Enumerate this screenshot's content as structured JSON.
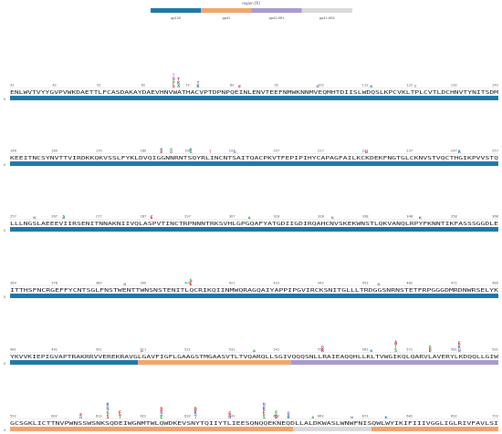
{
  "legend": {
    "title": "region [R]",
    "items": [
      {
        "label": "gp120",
        "color": "#1f78a8"
      },
      {
        "label": "gp41",
        "color": "#f2a56b"
      },
      {
        "label": "gp41-HR1",
        "color": "#a89ad0"
      },
      {
        "label": "gp41-HR2",
        "color": "#d9d9d9"
      }
    ]
  },
  "chart_data": {
    "type": "sequence-logo",
    "zero_label": "0",
    "rows": [
      {
        "start": 32,
        "ticks": [
          "32",
          "42",
          "52",
          "62",
          "72",
          "82",
          "92",
          "102",
          "112",
          "122",
          "132",
          "142"
        ],
        "sequence": "ENLWVTVYYGVPVWKDAETTLFCASDAKAYDAEVHNVWATHACVPTDPNPQEINLENVTEEFNMWKNNMVEQMHTDIISLWDQSLKPCVKLTPLCVTLDCHNVTYNITSDM",
        "segments": [
          {
            "region": "gp120",
            "from": 0,
            "to": 1
          }
        ],
        "logos": [
          {
            "pos": 0.335,
            "letters": [
              {
                "c": "S",
                "color": "#d62728"
              },
              {
                "c": "P",
                "color": "#2ca02c"
              },
              {
                "c": "N",
                "color": "#9467bd"
              },
              {
                "c": "T",
                "color": "#e377c2"
              }
            ],
            "h": 16
          },
          {
            "pos": 0.345,
            "letters": [
              {
                "c": "A",
                "color": "#2ca02c"
              },
              {
                "c": "K",
                "color": "#1f77b4"
              },
              {
                "c": "T",
                "color": "#d62728"
              }
            ],
            "h": 11
          },
          {
            "pos": 0.385,
            "letters": [
              {
                "c": "K",
                "color": "#1f77b4"
              },
              {
                "c": "T",
                "color": "#9467bd"
              }
            ],
            "h": 7
          },
          {
            "pos": 0.47,
            "letters": [
              {
                "c": "E",
                "color": "#d62728"
              }
            ],
            "h": 3
          },
          {
            "pos": 0.63,
            "letters": [
              {
                "c": "N",
                "color": "#9467bd"
              }
            ],
            "h": 3
          },
          {
            "pos": 0.74,
            "letters": [
              {
                "c": "K",
                "color": "#1f77b4"
              }
            ],
            "h": 3
          },
          {
            "pos": 0.83,
            "letters": [
              {
                "c": "T",
                "color": "#9467bd"
              }
            ],
            "h": 3
          }
        ]
      },
      {
        "start": 146,
        "ticks": [
          "146",
          "160",
          "170",
          "180",
          "190",
          "197",
          "207",
          "217",
          "227",
          "237",
          "247",
          "257"
        ],
        "sequence": "KEEITNCSYNVTTVIRDKKQKVSSLFYKLDVQIGGNNRNTSQYRLINCNTSAITQACPKVTFEPIPIHYCAPAGFAILKCKDEKFNGTGLCKNVSTVQCTHGIKPVVSTQ",
        "segments": [
          {
            "region": "gp120",
            "from": 0,
            "to": 1
          }
        ],
        "logos": [
          {
            "pos": 0.31,
            "letters": [
              {
                "c": "E",
                "color": "#d62728"
              },
              {
                "c": "K",
                "color": "#1f77b4"
              }
            ],
            "h": 6
          },
          {
            "pos": 0.33,
            "letters": [
              {
                "c": "N",
                "color": "#9467bd"
              },
              {
                "c": "S",
                "color": "#2ca02c"
              }
            ],
            "h": 6
          },
          {
            "pos": 0.37,
            "letters": [
              {
                "c": "G",
                "color": "#2ca02c"
              },
              {
                "c": "K",
                "color": "#1f77b4"
              }
            ],
            "h": 6
          },
          {
            "pos": 0.41,
            "letters": [
              {
                "c": "T",
                "color": "#e377c2"
              }
            ],
            "h": 4
          },
          {
            "pos": 0.46,
            "letters": [
              {
                "c": "N",
                "color": "#9467bd"
              }
            ],
            "h": 3
          },
          {
            "pos": 0.73,
            "letters": [
              {
                "c": "D",
                "color": "#d62728"
              }
            ],
            "h": 3
          },
          {
            "pos": 0.92,
            "letters": [
              {
                "c": "R",
                "color": "#1f77b4"
              }
            ],
            "h": 4
          }
        ]
      },
      {
        "start": 257,
        "ticks": [
          "257",
          "267",
          "277",
          "287",
          "297",
          "307",
          "318",
          "328",
          "338",
          "348",
          "358",
          "368"
        ],
        "sequence": "LLLNGSLAEEEVIIRSENITNNAKNIIVQLASPVTINCTRPNNNTRKSVHLGPGQAFYATGDIIGDIRQAHCNVSKEKWNSTLQKVANQLRPYFKNNTIKFASSSGGDLE",
        "segments": [
          {
            "region": "gp120",
            "from": 0,
            "to": 1
          }
        ],
        "logos": [
          {
            "pos": 0.05,
            "letters": [
              {
                "c": "N",
                "color": "#9467bd"
              }
            ],
            "h": 3
          },
          {
            "pos": 0.11,
            "letters": [
              {
                "c": "K",
                "color": "#1f77b4"
              },
              {
                "c": "S",
                "color": "#2ca02c"
              }
            ],
            "h": 4
          },
          {
            "pos": 0.29,
            "letters": [
              {
                "c": "E",
                "color": "#d62728"
              }
            ],
            "h": 4
          },
          {
            "pos": 0.49,
            "letters": [
              {
                "c": "A",
                "color": "#2ca02c"
              }
            ],
            "h": 3
          },
          {
            "pos": 0.66,
            "letters": [
              {
                "c": "N",
                "color": "#9467bd"
              }
            ],
            "h": 3
          },
          {
            "pos": 0.84,
            "letters": [
              {
                "c": "K",
                "color": "#1f77b4"
              }
            ],
            "h": 3
          }
        ]
      },
      {
        "start": 369,
        "ticks": [
          "369",
          "378",
          "389",
          "399",
          "409",
          "421",
          "431",
          "442",
          "453",
          "462",
          "472",
          "480"
        ],
        "sequence": "ITTHSFNCRGEFFYCNTSGLFNSTWENTTWNSNSTENITLQCRIKQIINMWQRAGQAIYAPPIPGVIRCKSNITGLLLTRDGGSNRNSTETFRPGGGDMRDNWRSELYK",
        "segments": [
          {
            "region": "gp120",
            "from": 0,
            "to": 1
          }
        ],
        "logos": [
          {
            "pos": 0.235,
            "letters": [
              {
                "c": "N",
                "color": "#9467bd"
              }
            ],
            "h": 3
          },
          {
            "pos": 0.37,
            "letters": [
              {
                "c": "E",
                "color": "#d62728"
              },
              {
                "c": "G",
                "color": "#2ca02c"
              }
            ],
            "h": 8
          },
          {
            "pos": 0.755,
            "letters": [
              {
                "c": "N",
                "color": "#9467bd"
              }
            ],
            "h": 3
          }
        ]
      },
      {
        "start": 481,
        "ticks": [
          "481",
          "491",
          "501",
          "511",
          "521",
          "531",
          "541",
          "551",
          "561",
          "571",
          "581",
          "591"
        ],
        "sequence": "YKVVKIEPIGVAPTRAKRRVVEREKRAVGLGAVFIGFLGAAGSTMGAASVTLTVQARQLLSGIVQQQSNLLRAIEAQQHLLKLTVWGIKQLQARVLAVERYLKDQQLLGIW",
        "segments": [
          {
            "region": "gp120",
            "from": 0,
            "to": 0.262
          },
          {
            "region": "gp41",
            "from": 0.262,
            "to": 0.575
          },
          {
            "region": "gp41-HR1",
            "from": 0.575,
            "to": 1
          }
        ],
        "logos": [
          {
            "pos": 0.27,
            "letters": [
              {
                "c": "L",
                "color": "#d62728"
              }
            ],
            "h": 3
          },
          {
            "pos": 0.5,
            "letters": [
              {
                "c": "A",
                "color": "#2ca02c"
              }
            ],
            "h": 3
          },
          {
            "pos": 0.64,
            "letters": [
              {
                "c": "R",
                "color": "#d62728"
              },
              {
                "c": "Q",
                "color": "#9467bd"
              }
            ],
            "h": 7
          },
          {
            "pos": 0.74,
            "letters": [
              {
                "c": "K",
                "color": "#1f77b4"
              }
            ],
            "h": 3
          },
          {
            "pos": 0.79,
            "letters": [
              {
                "c": "S",
                "color": "#2ca02c"
              },
              {
                "c": "T",
                "color": "#9467bd"
              },
              {
                "c": "A",
                "color": "#d62728"
              }
            ],
            "h": 13
          },
          {
            "pos": 0.86,
            "letters": [
              {
                "c": "D",
                "color": "#d62728"
              },
              {
                "c": "G",
                "color": "#2ca02c"
              }
            ],
            "h": 7
          },
          {
            "pos": 0.92,
            "letters": [
              {
                "c": "N",
                "color": "#9467bd"
              },
              {
                "c": "K",
                "color": "#1f77b4"
              },
              {
                "c": "E",
                "color": "#d62728"
              }
            ],
            "h": 12
          }
        ]
      },
      {
        "start": 592,
        "ticks": [
          "592",
          "602",
          "612",
          "622",
          "632",
          "642",
          "652",
          "662",
          "672",
          "682",
          "692",
          "702"
        ],
        "sequence": "GCSGKLICTTNVPWNSSWSNKSQDEIWGNMTWLQWDKEVSNYTQIIYTLIEESQNQQEKNEQDLLALDKWASLWNWFNISQWLWYIKIFIIIVGGLIGLRIVFAVLSI",
        "segments": [
          {
            "region": "gp41",
            "from": 0,
            "to": 0.58
          },
          {
            "region": "gp41-HR2",
            "from": 0.58,
            "to": 0.74
          },
          {
            "region": "gp41",
            "from": 0.74,
            "to": 1
          }
        ],
        "logos": [
          {
            "pos": 0.145,
            "letters": [
              {
                "c": "N",
                "color": "#9467bd"
              },
              {
                "c": "E",
                "color": "#d62728"
              }
            ],
            "h": 6
          },
          {
            "pos": 0.2,
            "letters": [
              {
                "c": "S",
                "color": "#d62728"
              },
              {
                "c": "G",
                "color": "#2ca02c"
              },
              {
                "c": "N",
                "color": "#9467bd"
              },
              {
                "c": "K",
                "color": "#1f77b4"
              }
            ],
            "h": 18
          },
          {
            "pos": 0.225,
            "letters": [
              {
                "c": "T",
                "color": "#2ca02c"
              },
              {
                "c": "E",
                "color": "#d62728"
              }
            ],
            "h": 9
          },
          {
            "pos": 0.31,
            "letters": [
              {
                "c": "E",
                "color": "#2ca02c"
              },
              {
                "c": "N",
                "color": "#9467bd"
              },
              {
                "c": "D",
                "color": "#d62728"
              }
            ],
            "h": 13
          },
          {
            "pos": 0.38,
            "letters": [
              {
                "c": "T",
                "color": "#9467bd"
              },
              {
                "c": "K",
                "color": "#1f77b4"
              },
              {
                "c": "D",
                "color": "#d62728"
              }
            ],
            "h": 13
          },
          {
            "pos": 0.45,
            "letters": [
              {
                "c": "N",
                "color": "#9467bd"
              },
              {
                "c": "E",
                "color": "#d62728"
              }
            ],
            "h": 8
          },
          {
            "pos": 0.52,
            "letters": [
              {
                "c": "S",
                "color": "#2ca02c"
              },
              {
                "c": "E",
                "color": "#d62728"
              },
              {
                "c": "K",
                "color": "#1f77b4"
              },
              {
                "c": "N",
                "color": "#9467bd"
              }
            ],
            "h": 18
          },
          {
            "pos": 0.545,
            "letters": [
              {
                "c": "D",
                "color": "#d62728"
              },
              {
                "c": "E",
                "color": "#2ca02c"
              }
            ],
            "h": 9
          },
          {
            "pos": 0.57,
            "letters": [
              {
                "c": "R",
                "color": "#1f77b4"
              },
              {
                "c": "Q",
                "color": "#9467bd"
              }
            ],
            "h": 8
          },
          {
            "pos": 0.62,
            "letters": [
              {
                "c": "A",
                "color": "#2ca02c"
              }
            ],
            "h": 3
          },
          {
            "pos": 0.7,
            "letters": [
              {
                "c": "N",
                "color": "#9467bd"
              }
            ],
            "h": 3
          },
          {
            "pos": 0.77,
            "letters": [
              {
                "c": "K",
                "color": "#1f77b4"
              }
            ],
            "h": 3
          }
        ]
      }
    ]
  }
}
